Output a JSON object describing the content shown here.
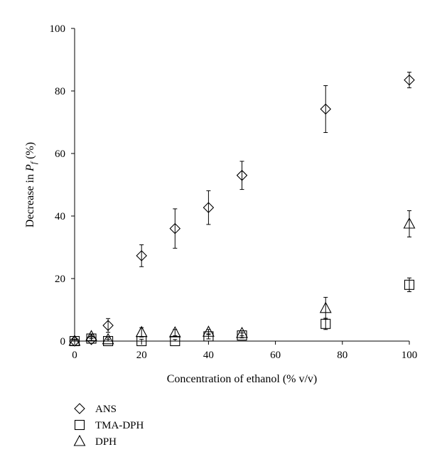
{
  "chart_data": {
    "type": "scatter",
    "xlabel": "Concentration of ethanol (% v/v)",
    "ylabel": {
      "prefix": "Decrease in ",
      "var": "P",
      "sub": "f",
      "suffix": " (%)"
    },
    "xlim": [
      0,
      100
    ],
    "ylim": [
      0,
      100
    ],
    "xticks": [
      0,
      20,
      40,
      60,
      80,
      100
    ],
    "yticks": [
      0,
      20,
      40,
      60,
      80,
      100
    ],
    "grid": false,
    "legend_position": "bottom-left",
    "series": [
      {
        "name": "ANS",
        "marker": "diamond",
        "x": [
          0,
          5,
          10,
          20,
          30,
          40,
          50,
          75,
          100
        ],
        "y": [
          0,
          0.5,
          5,
          27.3,
          36,
          42.7,
          53,
          74.2,
          83.5
        ],
        "err": [
          0.5,
          0.8,
          2.2,
          3.5,
          6.3,
          5.4,
          4.5,
          7.5,
          2.5
        ]
      },
      {
        "name": "TMA-DPH",
        "marker": "square",
        "x": [
          0,
          5,
          10,
          20,
          30,
          40,
          50,
          75,
          100
        ],
        "y": [
          0,
          0.8,
          0,
          0,
          0,
          1.5,
          1.8,
          5.5,
          18
        ],
        "err": [
          0.4,
          0.6,
          0.5,
          0.6,
          0.5,
          0.8,
          0.8,
          1.8,
          2.2
        ]
      },
      {
        "name": "DPH",
        "marker": "triangle",
        "x": [
          0,
          5,
          10,
          20,
          30,
          40,
          50,
          75,
          100
        ],
        "y": [
          0,
          1.5,
          0.5,
          2.8,
          2.7,
          2.9,
          2.5,
          10.5,
          37.5
        ],
        "err": [
          0.4,
          0.7,
          0.6,
          1.5,
          1.0,
          0.8,
          0.8,
          3.5,
          4.2
        ]
      }
    ]
  }
}
